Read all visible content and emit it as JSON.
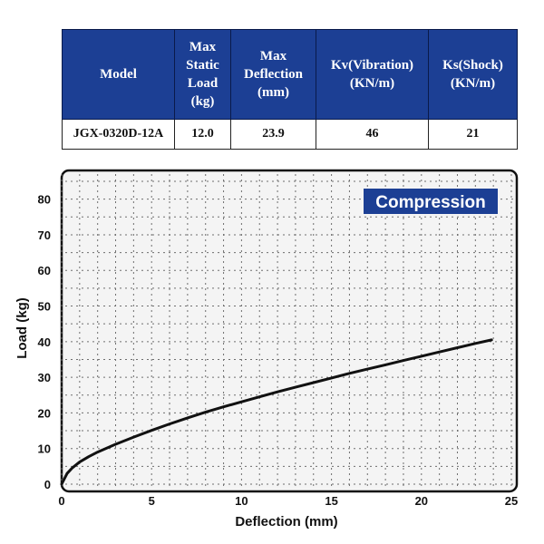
{
  "table": {
    "headers": [
      "Model",
      "Max\nStatic\nLoad\n(kg)",
      "Max\nDeflection\n(mm)",
      "Kv(Vibration)\n(KN/m)",
      "Ks(Shock)\n(KN/m)"
    ],
    "row": [
      "JGX-0320D-12A",
      "12.0",
      "23.9",
      "46",
      "21"
    ]
  },
  "colors": {
    "header_bg": "#1c3f94",
    "legend_bg": "#1c3f94",
    "curve": "#111111"
  },
  "chart_data": {
    "type": "line",
    "title": "",
    "legend_label": "Compression",
    "legend_position": "top-right",
    "xlabel": "Deflection (mm)",
    "ylabel": "Load (kg)",
    "xlim": [
      0,
      25
    ],
    "ylim": [
      0,
      85
    ],
    "xticks": [
      0,
      5,
      10,
      15,
      20,
      25
    ],
    "yticks": [
      0,
      10,
      20,
      30,
      40,
      50,
      60,
      70,
      80
    ],
    "grid": true,
    "series": [
      {
        "name": "Compression",
        "x": [
          0,
          0.3,
          0.6,
          1,
          1.5,
          2,
          3,
          4,
          5,
          6,
          7,
          8,
          9,
          10,
          11,
          12,
          13,
          14,
          15,
          16,
          17,
          18,
          19,
          20,
          21,
          22,
          23,
          23.9
        ],
        "values": [
          0,
          3.0,
          4.6,
          6.2,
          7.7,
          9.0,
          11.2,
          13.2,
          15.1,
          16.9,
          18.6,
          20.2,
          21.7,
          23.1,
          24.5,
          25.9,
          27.2,
          28.5,
          29.8,
          31.1,
          32.3,
          33.5,
          34.7,
          35.9,
          37.1,
          38.3,
          39.5,
          40.5
        ]
      }
    ]
  }
}
